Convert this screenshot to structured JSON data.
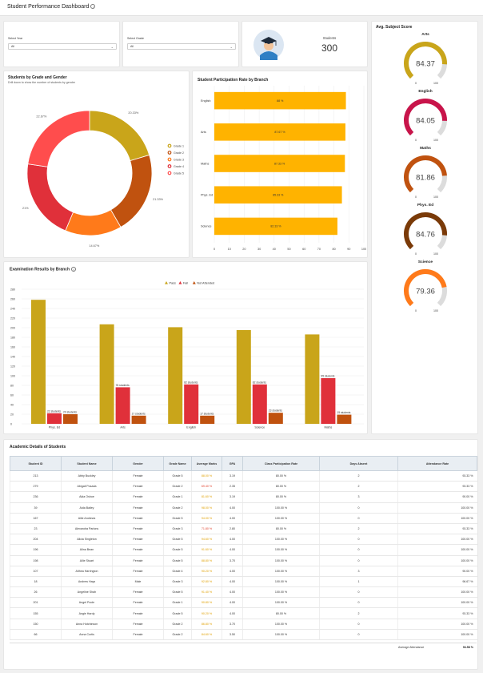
{
  "header": {
    "title": "Student Performance Dashboard"
  },
  "filters": {
    "year": {
      "label": "Select Year",
      "value": "All"
    },
    "grade": {
      "label": "Select Grade",
      "value": "All"
    }
  },
  "students": {
    "label": "Students",
    "count": "300"
  },
  "colors": {
    "gold": "#c9a51a",
    "red": "#e0303a",
    "darkorange": "#c0520f",
    "orange": "#ff7a1a",
    "brown": "#7a3a08",
    "crimson": "#c8144a",
    "amber": "#ffb300"
  },
  "donut": {
    "title": "Students by Grade and Gender",
    "subtitle": "Drill down to show the number of students by gender",
    "chart_data": {
      "type": "pie",
      "categories": [
        "Grade 1",
        "Grade 2",
        "Grade 3",
        "Grade 4",
        "Grade 5"
      ],
      "values": [
        20.33,
        21.33,
        14.67,
        21,
        22.67
      ],
      "labels": [
        "20.33%",
        "21.33%",
        "14.67%",
        "21%",
        "22.67%"
      ],
      "colors": [
        "#c9a51a",
        "#c0520f",
        "#ff7a1a",
        "#e0303a",
        "#ff4d4d"
      ],
      "legend": "right"
    }
  },
  "participation": {
    "title": "Student Participation Rate by Branch",
    "chart_data": {
      "type": "bar",
      "orientation": "horizontal",
      "categories": [
        "English",
        "Arts",
        "Maths",
        "Phys. Ed",
        "Science"
      ],
      "values": [
        88,
        87.67,
        87.33,
        85.33,
        82.33
      ],
      "labels": [
        "88 %",
        "87.67 %",
        "87.33 %",
        "85.33 %",
        "82.33 %"
      ],
      "xlim": [
        0,
        100
      ],
      "xticks": [
        0,
        10,
        20,
        30,
        40,
        50,
        60,
        70,
        80,
        90,
        100
      ]
    }
  },
  "subjects": {
    "title": "Avg. Subject Score",
    "items": [
      {
        "name": "Arts",
        "value": 84.37,
        "label": "84.37",
        "color": "#c9a51a"
      },
      {
        "name": "English",
        "value": 84.05,
        "label": "84.05",
        "color": "#c8144a"
      },
      {
        "name": "Maths",
        "value": 81.86,
        "label": "81.86",
        "color": "#c0520f"
      },
      {
        "name": "Phys. Ed",
        "value": 84.76,
        "label": "84.76",
        "color": "#7a3a08"
      },
      {
        "name": "Science",
        "value": 79.36,
        "label": "79.36",
        "color": "#ff7a1a"
      }
    ],
    "min_label": "0",
    "max_label": "100"
  },
  "exam": {
    "title": "Examination Results by Branch",
    "chart_data": {
      "type": "bar",
      "categories": [
        "Phys. Ed",
        "Arts",
        "English",
        "Science",
        "Maths"
      ],
      "series": [
        {
          "name": "Pass",
          "values": [
            258,
            207,
            201,
            195,
            186
          ],
          "color": "#c9a51a",
          "labels": [
            "",
            "",
            "",
            "",
            ""
          ]
        },
        {
          "name": "Fail",
          "values": [
            22,
            76,
            82,
            82,
            95
          ],
          "color": "#e0303a",
          "labels": [
            "22 students",
            "76 students",
            "82 students",
            "82 students",
            "95 students"
          ]
        },
        {
          "name": "Not Attended",
          "values": [
            20,
            17,
            17,
            23,
            19
          ],
          "color": "#c0520f",
          "labels": [
            "20 students",
            "17 students",
            "17 students",
            "23 students",
            "19 students"
          ]
        }
      ],
      "ylim": [
        0,
        280
      ],
      "yticks": [
        0,
        20,
        40,
        60,
        80,
        100,
        120,
        140,
        160,
        180,
        200,
        220,
        240,
        260,
        280
      ],
      "legend": "top"
    }
  },
  "table": {
    "title": "Academic Details of Students",
    "columns": [
      "Student ID",
      "Student Name",
      "Gender",
      "Grade Name",
      "Average Marks",
      "GPA",
      "Class Participation Rate",
      "Days Absent",
      "Attendance Rate"
    ],
    "rows": [
      [
        "213",
        "Abby Buckley",
        "Female",
        "Grade 5",
        "88.00 %",
        "3.19",
        "80.00 %",
        "2",
        "93.33 %"
      ],
      [
        "279",
        "Abigail Posada",
        "Female",
        "Grade 2",
        "69.40 %",
        "2.35",
        "80.00 %",
        "2",
        "93.33 %"
      ],
      [
        "236",
        "Aida Oshoe",
        "Female",
        "Grade 1",
        "81.60 %",
        "3.19",
        "80.00 %",
        "3",
        "90.00 %"
      ],
      [
        "39",
        "Aida Bailey",
        "Female",
        "Grade 2",
        "98.00 %",
        "4.00",
        "100.00 %",
        "0",
        "100.00 %"
      ],
      [
        "167",
        "Ailie Andrews",
        "Female",
        "Grade 5",
        "94.00 %",
        "4.00",
        "100.00 %",
        "0",
        "100.00 %"
      ],
      [
        "23",
        "Alexandra Parlons",
        "Female",
        "Grade 3",
        "71.80 %",
        "2.80",
        "80.00 %",
        "2",
        "93.33 %"
      ],
      [
        "204",
        "Alicia Singleton",
        "Female",
        "Grade 5",
        "94.60 %",
        "4.00",
        "100.00 %",
        "0",
        "100.00 %"
      ],
      [
        "196",
        "Alina Bean",
        "Female",
        "Grade 5",
        "91.60 %",
        "4.00",
        "100.00 %",
        "0",
        "100.00 %"
      ],
      [
        "198",
        "Allie Stuart",
        "Female",
        "Grade 5",
        "88.80 %",
        "3.70",
        "100.00 %",
        "0",
        "100.00 %"
      ],
      [
        "107",
        "Althea Harrington",
        "Female",
        "Grade 4",
        "90.20 %",
        "4.00",
        "100.00 %",
        "3",
        "90.00 %"
      ],
      [
        "18",
        "Andrew Hays",
        "Male",
        "Grade 3",
        "92.80 %",
        "4.00",
        "100.00 %",
        "1",
        "96.67 %"
      ],
      [
        "26",
        "Angeline Shah",
        "Female",
        "Grade 5",
        "91.40 %",
        "4.00",
        "100.00 %",
        "0",
        "100.00 %"
      ],
      [
        "201",
        "Angel Poole",
        "Female",
        "Grade 1",
        "90.80 %",
        "4.00",
        "100.00 %",
        "0",
        "100.00 %"
      ],
      [
        "155",
        "Angie Hardy",
        "Female",
        "Grade 5",
        "90.20 %",
        "4.00",
        "80.00 %",
        "2",
        "93.33 %"
      ],
      [
        "150",
        "Anna Hutchinson",
        "Female",
        "Grade 2",
        "86.80 %",
        "3.70",
        "100.00 %",
        "0",
        "100.00 %"
      ],
      [
        "66",
        "Anna Curtis",
        "Female",
        "Grade 2",
        "84.60 %",
        "3.50",
        "100.00 %",
        "0",
        "100.00 %"
      ]
    ],
    "footer_label": "Average Attendance",
    "footer_value": "94.58 %"
  }
}
